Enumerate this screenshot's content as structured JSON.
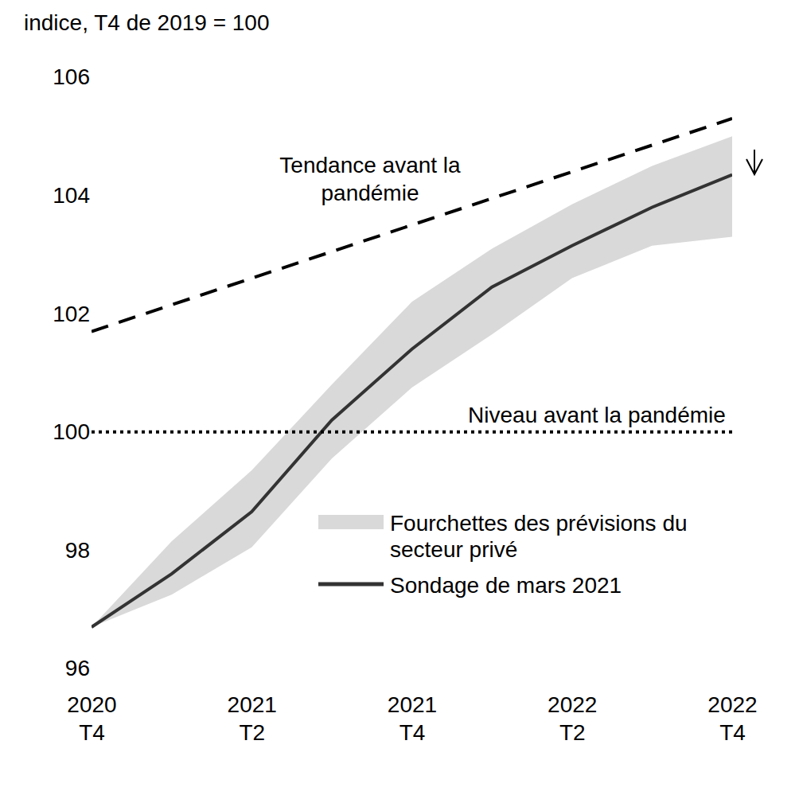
{
  "chart_data": {
    "type": "line",
    "y_label": "indice, T4 de 2019 = 100",
    "categories": [
      "2020 T4",
      null,
      "2021 T2",
      null,
      "2021 T4",
      null,
      "2022 T2",
      null,
      "2022 T4"
    ],
    "ylim": [
      96,
      106
    ],
    "yticks": [
      96,
      98,
      100,
      102,
      104,
      106
    ],
    "legend": "lower right",
    "series": [
      {
        "name": "Fourchettes des prévisions du secteur privé",
        "type": "area",
        "color": "#d9d9d9",
        "lower": [
          96.7,
          97.25,
          98.05,
          99.55,
          100.75,
          101.65,
          102.6,
          103.15,
          103.3
        ],
        "upper": [
          96.7,
          98.15,
          99.35,
          100.8,
          102.2,
          103.1,
          103.85,
          104.5,
          105.0
        ]
      },
      {
        "name": "Sondage de mars 2021",
        "type": "line",
        "color": "#333333",
        "line_style": "solid",
        "values": [
          96.7,
          97.6,
          98.65,
          100.2,
          101.4,
          102.45,
          103.15,
          103.8,
          104.35
        ]
      },
      {
        "name": "Tendance avant la pandémie",
        "type": "line",
        "color": "#000000",
        "line_style": "dashed",
        "values": [
          101.7,
          102.15,
          102.6,
          103.05,
          103.5,
          103.95,
          104.4,
          104.85,
          105.3
        ]
      },
      {
        "name": "Niveau avant la pandémie",
        "type": "line",
        "color": "#000000",
        "line_style": "dotted",
        "values": [
          100,
          100,
          100,
          100,
          100,
          100,
          100,
          100,
          100
        ]
      }
    ]
  }
}
